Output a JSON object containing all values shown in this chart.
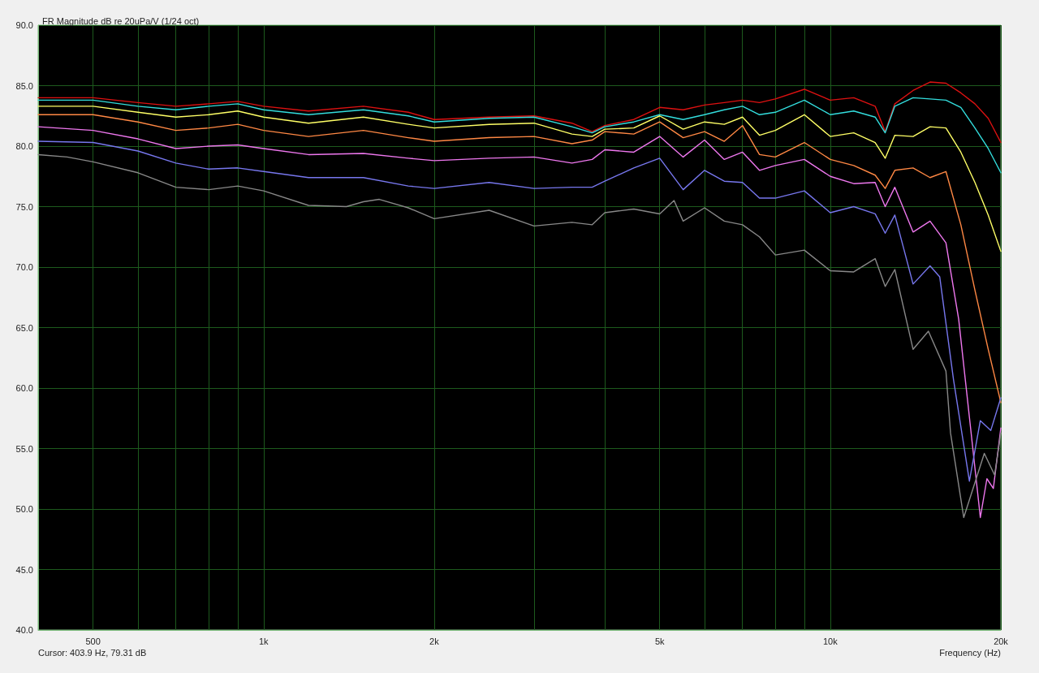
{
  "chart_data": {
    "type": "line",
    "title": "FR Magnitude dB re 20uPa/V (1/24 oct)",
    "xlabel": "Frequency (Hz)",
    "annotations": [
      "Cursor: 403.9 Hz, 79.31 dB"
    ],
    "log": "x",
    "grid": true,
    "marker": "none",
    "line_style": "solid",
    "xlim": [
      400,
      20000
    ],
    "ylim": [
      40,
      90
    ],
    "xticks": [
      {
        "value": 400,
        "label": null
      },
      500,
      {
        "value": 600,
        "label": null
      },
      {
        "value": 700,
        "label": null
      },
      {
        "value": 800,
        "label": null
      },
      {
        "value": 900,
        "label": null
      },
      {
        "value": 1000,
        "label": "1k"
      },
      {
        "value": 2000,
        "label": "2k"
      },
      {
        "value": 3000,
        "label": null
      },
      {
        "value": 4000,
        "label": null
      },
      {
        "value": 5000,
        "label": "5k"
      },
      {
        "value": 6000,
        "label": null
      },
      {
        "value": 7000,
        "label": null
      },
      {
        "value": 8000,
        "label": null
      },
      {
        "value": 9000,
        "label": null
      },
      {
        "value": 10000,
        "label": "10k"
      },
      {
        "value": 20000,
        "label": "20k"
      }
    ],
    "yticks": [
      {
        "value": 40,
        "label": "40.0"
      },
      {
        "value": 45,
        "label": "45.0"
      },
      {
        "value": 50,
        "label": "50.0"
      },
      {
        "value": 55,
        "label": "55.0"
      },
      {
        "value": 60,
        "label": "60.0"
      },
      {
        "value": 65,
        "label": "65.0"
      },
      {
        "value": 70,
        "label": "70.0"
      },
      {
        "value": 75,
        "label": "75.0"
      },
      {
        "value": 80,
        "label": "80.0"
      },
      {
        "value": 85,
        "label": "85.0"
      },
      {
        "value": 90,
        "label": "90.0"
      }
    ],
    "series": [
      {
        "color": "#dd1111",
        "x": [
          400,
          500,
          600,
          700,
          800,
          900,
          1000,
          1200,
          1500,
          1800,
          2000,
          2500,
          3000,
          3500,
          3800,
          4000,
          4500,
          5000,
          5500,
          6000,
          6500,
          7000,
          7500,
          8000,
          9000,
          10000,
          11000,
          12000,
          12500,
          13000,
          14000,
          15000,
          16000,
          17000,
          18000,
          19000,
          20000
        ],
        "values": [
          84.0,
          84.0,
          83.6,
          83.3,
          83.5,
          83.7,
          83.3,
          82.9,
          83.3,
          82.8,
          82.2,
          82.4,
          82.5,
          81.9,
          81.2,
          81.7,
          82.2,
          83.2,
          83.0,
          83.4,
          83.6,
          83.8,
          83.6,
          83.9,
          84.7,
          83.8,
          84.0,
          83.3,
          81.2,
          83.5,
          84.6,
          85.3,
          85.2,
          84.4,
          83.5,
          82.3,
          80.3
        ]
      },
      {
        "color": "#33dddd",
        "x": [
          400,
          500,
          600,
          700,
          800,
          900,
          1000,
          1200,
          1500,
          1800,
          2000,
          2500,
          3000,
          3500,
          3800,
          4000,
          4500,
          5000,
          5500,
          6000,
          6500,
          7000,
          7500,
          8000,
          9000,
          10000,
          11000,
          12000,
          12500,
          13000,
          14000,
          15000,
          16000,
          17000,
          18000,
          19000,
          20000
        ],
        "values": [
          83.8,
          83.8,
          83.3,
          83.0,
          83.3,
          83.5,
          83.0,
          82.6,
          83.0,
          82.5,
          82.0,
          82.3,
          82.4,
          81.6,
          81.1,
          81.6,
          82.0,
          82.6,
          82.2,
          82.6,
          83.0,
          83.3,
          82.6,
          82.8,
          83.8,
          82.6,
          82.9,
          82.4,
          81.1,
          83.3,
          84.0,
          83.9,
          83.8,
          83.2,
          81.5,
          79.8,
          77.8
        ]
      },
      {
        "color": "#ffff66",
        "x": [
          400,
          500,
          600,
          700,
          800,
          900,
          1000,
          1200,
          1500,
          1800,
          2000,
          2500,
          3000,
          3500,
          3800,
          4000,
          4500,
          5000,
          5500,
          6000,
          6500,
          7000,
          7500,
          8000,
          9000,
          10000,
          11000,
          12000,
          12500,
          13000,
          14000,
          15000,
          16000,
          17000,
          18000,
          19000,
          20000
        ],
        "values": [
          83.3,
          83.3,
          82.8,
          82.4,
          82.6,
          82.9,
          82.4,
          81.9,
          82.4,
          81.8,
          81.5,
          81.8,
          81.9,
          81.0,
          80.8,
          81.4,
          81.5,
          82.5,
          81.4,
          82.0,
          81.8,
          82.4,
          80.9,
          81.3,
          82.6,
          80.8,
          81.1,
          80.3,
          79.0,
          80.9,
          80.8,
          81.6,
          81.5,
          79.5,
          77.0,
          74.3,
          71.3
        ]
      },
      {
        "color": "#ff8844",
        "x": [
          400,
          500,
          600,
          700,
          800,
          900,
          1000,
          1200,
          1500,
          1800,
          2000,
          2500,
          3000,
          3500,
          3800,
          4000,
          4500,
          5000,
          5500,
          6000,
          6500,
          7000,
          7500,
          8000,
          9000,
          10000,
          11000,
          12000,
          12500,
          13000,
          14000,
          15000,
          16000,
          17000,
          18000,
          19000,
          20000
        ],
        "values": [
          82.6,
          82.6,
          82.0,
          81.3,
          81.5,
          81.8,
          81.3,
          80.8,
          81.3,
          80.7,
          80.4,
          80.7,
          80.8,
          80.2,
          80.5,
          81.2,
          81.0,
          82.0,
          80.7,
          81.2,
          80.4,
          81.7,
          79.3,
          79.1,
          80.3,
          78.9,
          78.4,
          77.6,
          76.5,
          78.0,
          78.2,
          77.4,
          77.9,
          73.5,
          68.1,
          63.2,
          58.8
        ]
      },
      {
        "color": "#ee77ee",
        "x": [
          400,
          500,
          600,
          700,
          800,
          900,
          1000,
          1200,
          1500,
          1800,
          2000,
          2500,
          3000,
          3500,
          3800,
          4000,
          4500,
          5000,
          5500,
          6000,
          6500,
          7000,
          7500,
          8000,
          9000,
          10000,
          11000,
          12000,
          12500,
          13000,
          14000,
          15000,
          16000,
          16850,
          17600,
          18400,
          18900,
          19400,
          20000
        ],
        "values": [
          81.6,
          81.3,
          80.6,
          79.8,
          80.0,
          80.1,
          79.8,
          79.3,
          79.4,
          79.0,
          78.8,
          79.0,
          79.1,
          78.6,
          78.9,
          79.7,
          79.5,
          80.8,
          79.1,
          80.5,
          78.9,
          79.5,
          78.0,
          78.4,
          78.9,
          77.5,
          76.9,
          77.0,
          75.0,
          76.6,
          72.9,
          73.8,
          72.0,
          65.7,
          57.6,
          49.3,
          52.5,
          51.7,
          56.7
        ]
      },
      {
        "color": "#7777ee",
        "x": [
          400,
          500,
          600,
          700,
          800,
          900,
          1000,
          1200,
          1500,
          1800,
          2000,
          2500,
          3000,
          3500,
          3800,
          4000,
          4500,
          5000,
          5500,
          6000,
          6500,
          7000,
          7500,
          8000,
          9000,
          10000,
          11000,
          12000,
          12500,
          13000,
          14000,
          15000,
          15600,
          16500,
          17600,
          18400,
          19200,
          20000
        ],
        "values": [
          80.4,
          80.3,
          79.6,
          78.6,
          78.1,
          78.2,
          77.9,
          77.4,
          77.4,
          76.7,
          76.5,
          77.0,
          76.5,
          76.6,
          76.6,
          77.1,
          78.2,
          79.0,
          76.4,
          78.0,
          77.1,
          77.0,
          75.7,
          75.7,
          76.3,
          74.5,
          75.0,
          74.4,
          72.8,
          74.3,
          68.6,
          70.1,
          69.2,
          60.7,
          52.3,
          57.3,
          56.5,
          59.2
        ]
      },
      {
        "color": "#888888",
        "x": [
          400,
          450,
          500,
          600,
          700,
          800,
          900,
          1000,
          1200,
          1400,
          1500,
          1600,
          1800,
          2000,
          2500,
          3000,
          3500,
          3800,
          4000,
          4500,
          5000,
          5300,
          5500,
          6000,
          6500,
          7000,
          7500,
          8000,
          9000,
          10000,
          11000,
          12000,
          12500,
          13000,
          14000,
          14900,
          16000,
          16300,
          17200,
          18700,
          19500,
          20000
        ],
        "values": [
          79.3,
          79.1,
          78.7,
          77.8,
          76.6,
          76.4,
          76.7,
          76.3,
          75.1,
          75.0,
          75.4,
          75.6,
          74.9,
          74.0,
          74.7,
          73.4,
          73.7,
          73.5,
          74.5,
          74.8,
          74.4,
          75.5,
          73.8,
          74.9,
          73.8,
          73.5,
          72.5,
          71.0,
          71.4,
          69.7,
          69.6,
          70.7,
          68.4,
          69.8,
          63.2,
          64.7,
          61.4,
          56.3,
          49.3,
          54.6,
          52.8,
          56.3
        ]
      }
    ]
  }
}
